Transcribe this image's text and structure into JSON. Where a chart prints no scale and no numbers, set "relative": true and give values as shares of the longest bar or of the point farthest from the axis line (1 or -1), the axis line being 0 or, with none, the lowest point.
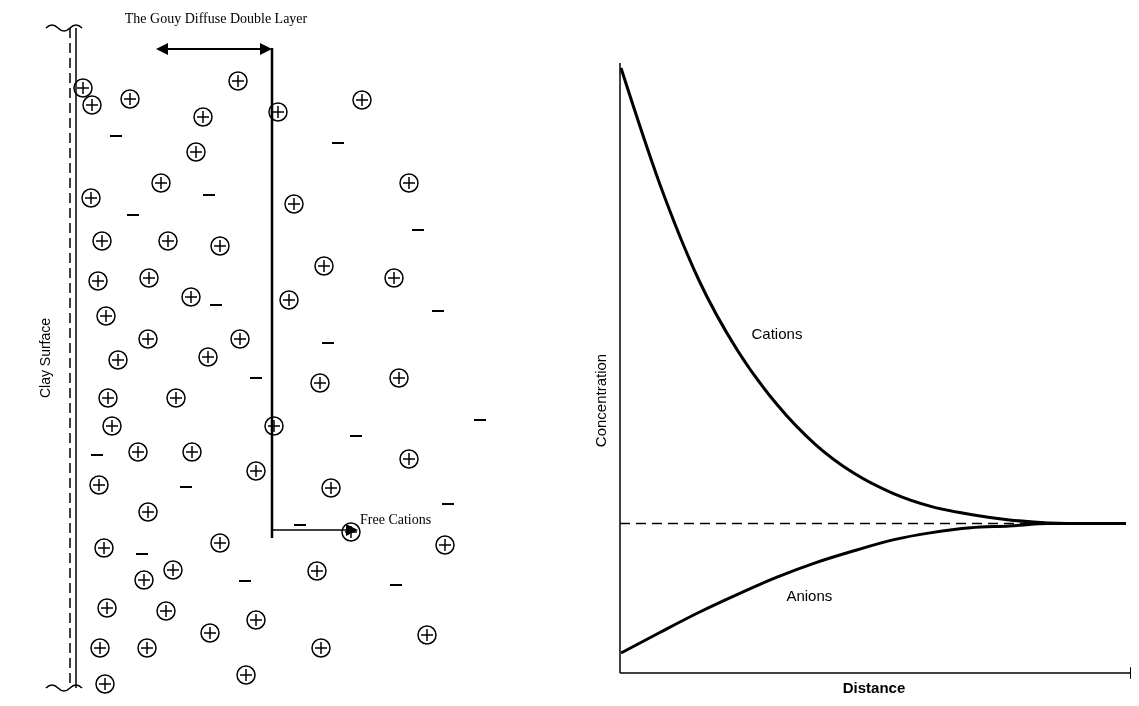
{
  "chart_data": [
    {
      "type": "other",
      "annotations": [
        "The Gouy Diffuse  Double Layer",
        "Clay Surface",
        "Free Cations"
      ]
    },
    {
      "type": "line",
      "relative": true,
      "xlabel": "Distance",
      "ylabel": "Concentration",
      "marker": "none",
      "categories": [
        null,
        null,
        null,
        null,
        null,
        null,
        null,
        null,
        null,
        null,
        null,
        null,
        null,
        null
      ],
      "series": [
        {
          "name": "Cations",
          "color": "#000000",
          "values": [
            1,
            0.808,
            0.65,
            0.533,
            0.445,
            0.378,
            0.33,
            0.297,
            0.275,
            0.262,
            0.253,
            0.248,
            0.247,
            0.247
          ]
        },
        {
          "name": "Anions",
          "color": "#000000",
          "values": [
            0.033,
            0.067,
            0.1,
            0.13,
            0.158,
            0.182,
            0.202,
            0.22,
            0.232,
            0.24,
            0.243,
            0.247,
            0.247,
            0.247
          ]
        }
      ],
      "ref_lines": [
        {
          "axis": "y",
          "value": 0.247,
          "line_style": "dashed",
          "color": "#000000"
        }
      ]
    }
  ]
}
